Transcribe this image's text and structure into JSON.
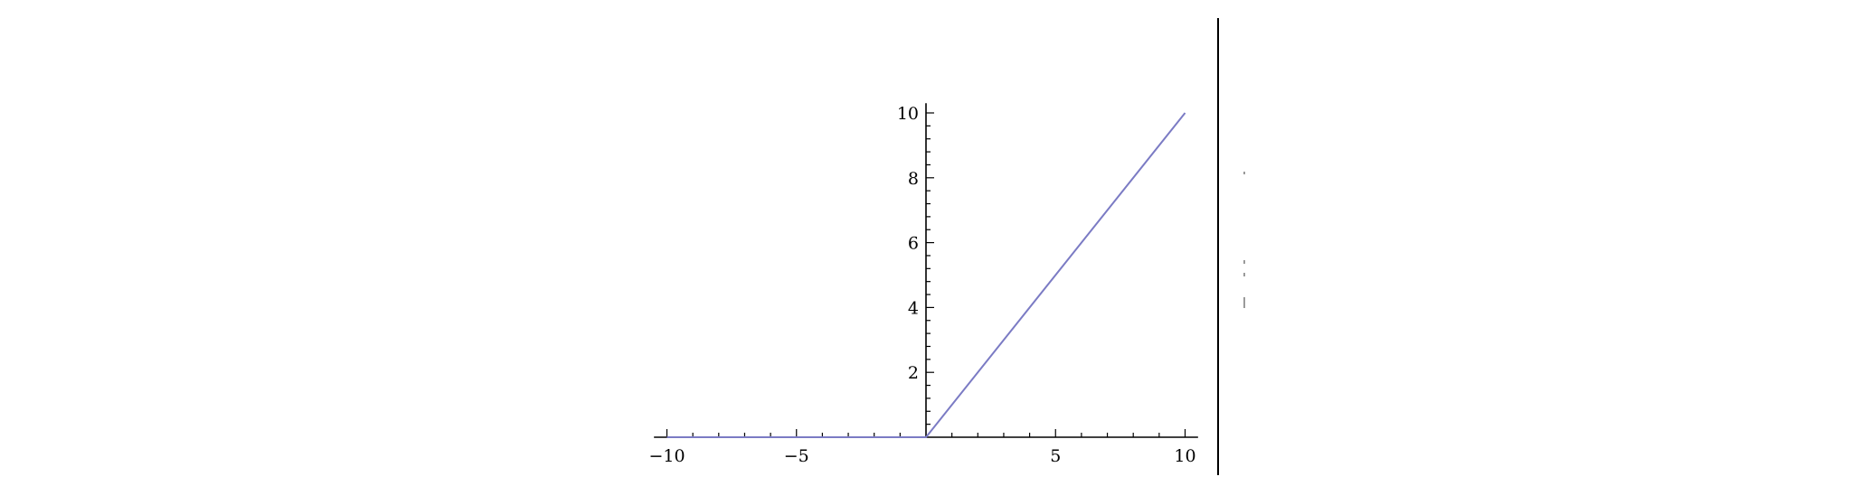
{
  "chart_data": {
    "type": "line",
    "title": "",
    "xlabel": "",
    "ylabel": "",
    "xlim": [
      -10.5,
      10.5
    ],
    "ylim": [
      0,
      10.3
    ],
    "x_ticks": [
      -10,
      -5,
      5,
      10
    ],
    "x_tick_labels": [
      "−10",
      "−5",
      "5",
      "10"
    ],
    "y_ticks": [
      2,
      4,
      6,
      8,
      10
    ],
    "y_tick_labels": [
      "2",
      "4",
      "6",
      "8",
      "10"
    ],
    "x_minor_step": 1,
    "y_minor_step": 0.4,
    "grid": false,
    "series": [
      {
        "x": [
          -10,
          0,
          10
        ],
        "y": [
          0,
          0,
          10
        ],
        "color": "#7b7bc4"
      }
    ]
  }
}
